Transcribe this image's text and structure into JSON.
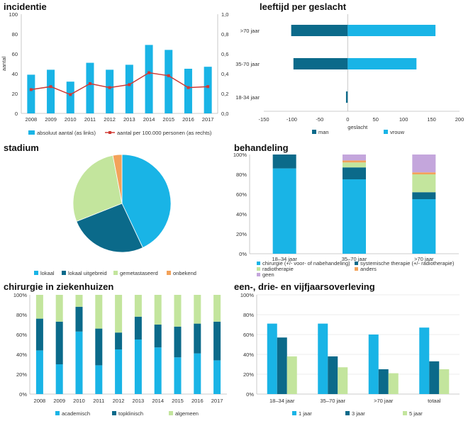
{
  "colors": {
    "light_blue": "#19b4e6",
    "dark_blue": "#0b6a8a",
    "light_green": "#c3e59d",
    "orange": "#f3a25a",
    "purple": "#c4a6dc",
    "red": "#d03a35"
  },
  "chart_data": [
    {
      "id": "incidentie",
      "type": "bar",
      "title": "incidentie",
      "ylabel": "aantal",
      "categories": [
        "2008",
        "2009",
        "2010",
        "2011",
        "2012",
        "2013",
        "2014",
        "2015",
        "2016",
        "2017"
      ],
      "ylim": [
        0,
        100
      ],
      "y_ticks": [
        "0",
        "20",
        "40",
        "60",
        "80",
        "100"
      ],
      "y2lim": [
        0,
        1.0
      ],
      "y2_ticks": [
        "0,0",
        "0,2",
        "0,4",
        "0,6",
        "0,8",
        "1,0"
      ],
      "series": [
        {
          "name": "absoluut aantal (as links)",
          "type": "bar",
          "values": [
            39,
            44,
            32,
            51,
            44,
            49,
            69,
            64,
            45,
            47
          ]
        },
        {
          "name": "aantal per 100.000 personen (as rechts)",
          "type": "line",
          "axis": "right",
          "values": [
            0.24,
            0.27,
            0.19,
            0.3,
            0.26,
            0.29,
            0.41,
            0.38,
            0.26,
            0.27
          ]
        }
      ]
    },
    {
      "id": "leeftijd",
      "type": "bar",
      "orientation": "horizontal",
      "title": "leeftijd per geslacht",
      "xlabel": "geslacht",
      "categories": [
        ">70 jaar",
        "35-70 jaar",
        "18-34 jaar"
      ],
      "xlim": [
        -150,
        200
      ],
      "x_ticks": [
        "-150",
        "-100",
        "-50",
        "0",
        "50",
        "100",
        "150",
        "200"
      ],
      "series": [
        {
          "name": "man",
          "values": [
            -101,
            -97,
            -3
          ]
        },
        {
          "name": "vrouw",
          "values": [
            157,
            123,
            0
          ]
        }
      ]
    },
    {
      "id": "stadium",
      "type": "pie",
      "title": "stadium",
      "series": [
        {
          "name": "lokaal",
          "value": 43
        },
        {
          "name": "lokaal uitgebreid",
          "value": 26
        },
        {
          "name": "gemetastaseerd",
          "value": 28
        },
        {
          "name": "onbekend",
          "value": 3
        }
      ]
    },
    {
      "id": "behandeling",
      "type": "bar",
      "stacked": true,
      "title": "behandeling",
      "categories": [
        "18–34 jaar",
        "35–70 jaar",
        ">70 jaar"
      ],
      "ylim": [
        0,
        100
      ],
      "y_ticks": [
        "0%",
        "20%",
        "40%",
        "60%",
        "80%",
        "100%"
      ],
      "series": [
        {
          "name": "chirurgie (+/- voor- of nabehandeling)",
          "values": [
            86,
            75,
            55
          ]
        },
        {
          "name": "systemische therapie (+/- radiotherapie)",
          "values": [
            14,
            12,
            7
          ]
        },
        {
          "name": "radiotherapie",
          "values": [
            0,
            5,
            18
          ]
        },
        {
          "name": "anders",
          "values": [
            0,
            2,
            2
          ]
        },
        {
          "name": "geen",
          "values": [
            0,
            6,
            18
          ]
        }
      ]
    },
    {
      "id": "chirurgie",
      "type": "bar",
      "stacked": true,
      "title": "chirurgie in ziekenhuizen",
      "categories": [
        "2008",
        "2009",
        "2010",
        "2011",
        "2012",
        "2013",
        "2014",
        "2015",
        "2016",
        "2017"
      ],
      "ylim": [
        0,
        100
      ],
      "y_ticks": [
        "0%",
        "20%",
        "40%",
        "60%",
        "80%",
        "100%"
      ],
      "series": [
        {
          "name": "academisch",
          "values": [
            44,
            30,
            63,
            29,
            45,
            55,
            47,
            37,
            41,
            34
          ]
        },
        {
          "name": "topklinisch",
          "values": [
            32,
            43,
            25,
            37,
            17,
            23,
            23,
            31,
            30,
            39
          ]
        },
        {
          "name": "algemeen",
          "values": [
            24,
            27,
            12,
            34,
            38,
            22,
            30,
            32,
            29,
            27
          ]
        }
      ]
    },
    {
      "id": "overleving",
      "type": "bar",
      "title": "een-, drie- en vijfjaarsoverleving",
      "categories": [
        "18–34 jaar",
        "35–70 jaar",
        ">70 jaar",
        "totaal"
      ],
      "ylim": [
        0,
        100
      ],
      "y_ticks": [
        "0%",
        "20%",
        "40%",
        "60%",
        "80%",
        "100%"
      ],
      "series": [
        {
          "name": "1 jaar",
          "values": [
            71,
            71,
            60,
            67
          ]
        },
        {
          "name": "3 jaar",
          "values": [
            57,
            38,
            25,
            33
          ]
        },
        {
          "name": "5 jaar",
          "values": [
            38,
            27,
            21,
            25
          ]
        }
      ]
    }
  ]
}
